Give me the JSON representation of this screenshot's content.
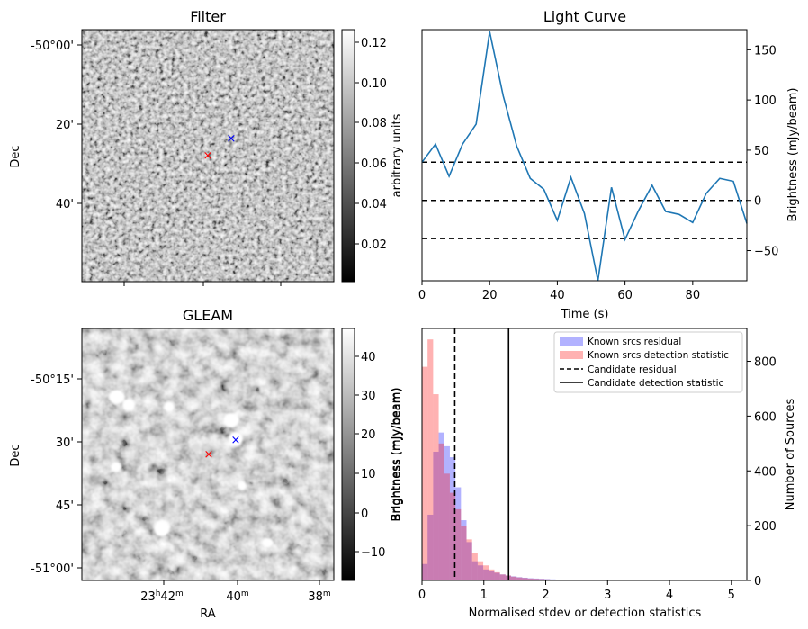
{
  "filter_panel": {
    "title": "Filter",
    "ylabel": "Dec",
    "y_ticks": [
      "-50°00'",
      "20'",
      "40'"
    ],
    "colorbar_label": "arbitrary units",
    "colorbar_ticks": [
      "0.12",
      "0.10",
      "0.08",
      "0.06",
      "0.04",
      "0.02"
    ],
    "colormap": "gray",
    "markers": [
      {
        "symbol": "×",
        "color": "#0000ff",
        "meaning": "candidate"
      },
      {
        "symbol": "×",
        "color": "#ff0000",
        "meaning": "candidate"
      }
    ]
  },
  "gleam_panel": {
    "title": "GLEAM",
    "ylabel": "Dec",
    "xlabel": "RA",
    "y_ticks": [
      "-50°15'",
      "30'",
      "45'",
      "-51°00'"
    ],
    "x_ticks": [
      {
        "main": "23",
        "sup1": "h",
        "mid": "42",
        "sup2": "m"
      },
      {
        "main": "40",
        "sup1": "",
        "mid": "",
        "sup2": "m"
      },
      {
        "main": "38",
        "sup1": "",
        "mid": "",
        "sup2": "m"
      }
    ],
    "colorbar_label": "Brightness (mJy/beam)",
    "colorbar_ticks": [
      "40",
      "30",
      "20",
      "10",
      "0",
      "−10"
    ],
    "colormap": "gray"
  },
  "chart_data": [
    {
      "type": "line",
      "title": "Light Curve",
      "xlabel": "Time (s)",
      "ylabel": "Brightness (mJy/beam)",
      "xlim": [
        0,
        96
      ],
      "ylim": [
        -80,
        170
      ],
      "x_ticks": [
        0,
        20,
        40,
        60,
        80
      ],
      "y_ticks": [
        -50,
        0,
        50,
        100,
        150
      ],
      "y_tick_labels": [
        "−50",
        "0",
        "50",
        "100",
        "150"
      ],
      "series": [
        {
          "name": "light curve",
          "color": "#1f77b4",
          "x": [
            0,
            4,
            8,
            12,
            16,
            20,
            24,
            28,
            32,
            36,
            40,
            44,
            48,
            52,
            56,
            60,
            64,
            68,
            72,
            76,
            80,
            84,
            88,
            92,
            96
          ],
          "y": [
            38,
            56,
            24,
            56,
            76,
            168,
            104,
            54,
            22,
            11,
            -20,
            23,
            -13,
            -80,
            13,
            -39,
            -10,
            15,
            -11,
            -14,
            -22,
            7,
            22,
            19,
            -23
          ]
        }
      ],
      "hlines": [
        {
          "y": 38,
          "style": "dashed",
          "color": "#000000"
        },
        {
          "y": 0,
          "style": "dashed",
          "color": "#000000"
        },
        {
          "y": -38,
          "style": "dashed",
          "color": "#000000"
        }
      ]
    },
    {
      "type": "histogram",
      "xlabel": "Normalised stdev or detection statistics",
      "ylabel": "Number of Sources",
      "left_ylabel": "Brightness (mJy/beam)",
      "xlim": [
        0,
        5.25
      ],
      "ylim": [
        0,
        920
      ],
      "x_ticks": [
        0,
        1,
        2,
        3,
        4,
        5
      ],
      "y_ticks": [
        0,
        200,
        400,
        600,
        800
      ],
      "bin_width": 0.09,
      "series": [
        {
          "name": "Known srcs residual",
          "color": "#0000ff",
          "alpha": 0.3,
          "values": [
            60,
            240,
            470,
            540,
            490,
            450,
            340,
            220,
            140,
            70,
            55,
            40,
            35,
            28,
            22,
            18,
            15,
            12,
            10,
            8,
            7,
            6,
            5,
            4,
            3,
            3,
            2,
            2,
            2,
            1
          ]
        },
        {
          "name": "Known srcs detection statistic",
          "color": "#ff0000",
          "alpha": 0.3,
          "values": [
            780,
            880,
            680,
            500,
            390,
            320,
            260,
            200,
            150,
            100,
            70,
            55,
            40,
            30,
            22,
            18,
            14,
            11,
            9,
            7,
            6,
            5,
            4,
            3,
            3,
            2,
            2,
            2,
            1,
            1
          ]
        }
      ],
      "vlines": [
        {
          "name": "Candidate residual",
          "x": 0.53,
          "style": "dashed",
          "color": "#000000"
        },
        {
          "name": "Candidate detection statistic",
          "x": 1.4,
          "style": "solid",
          "color": "#000000"
        }
      ],
      "legend_position": "top-right"
    }
  ]
}
